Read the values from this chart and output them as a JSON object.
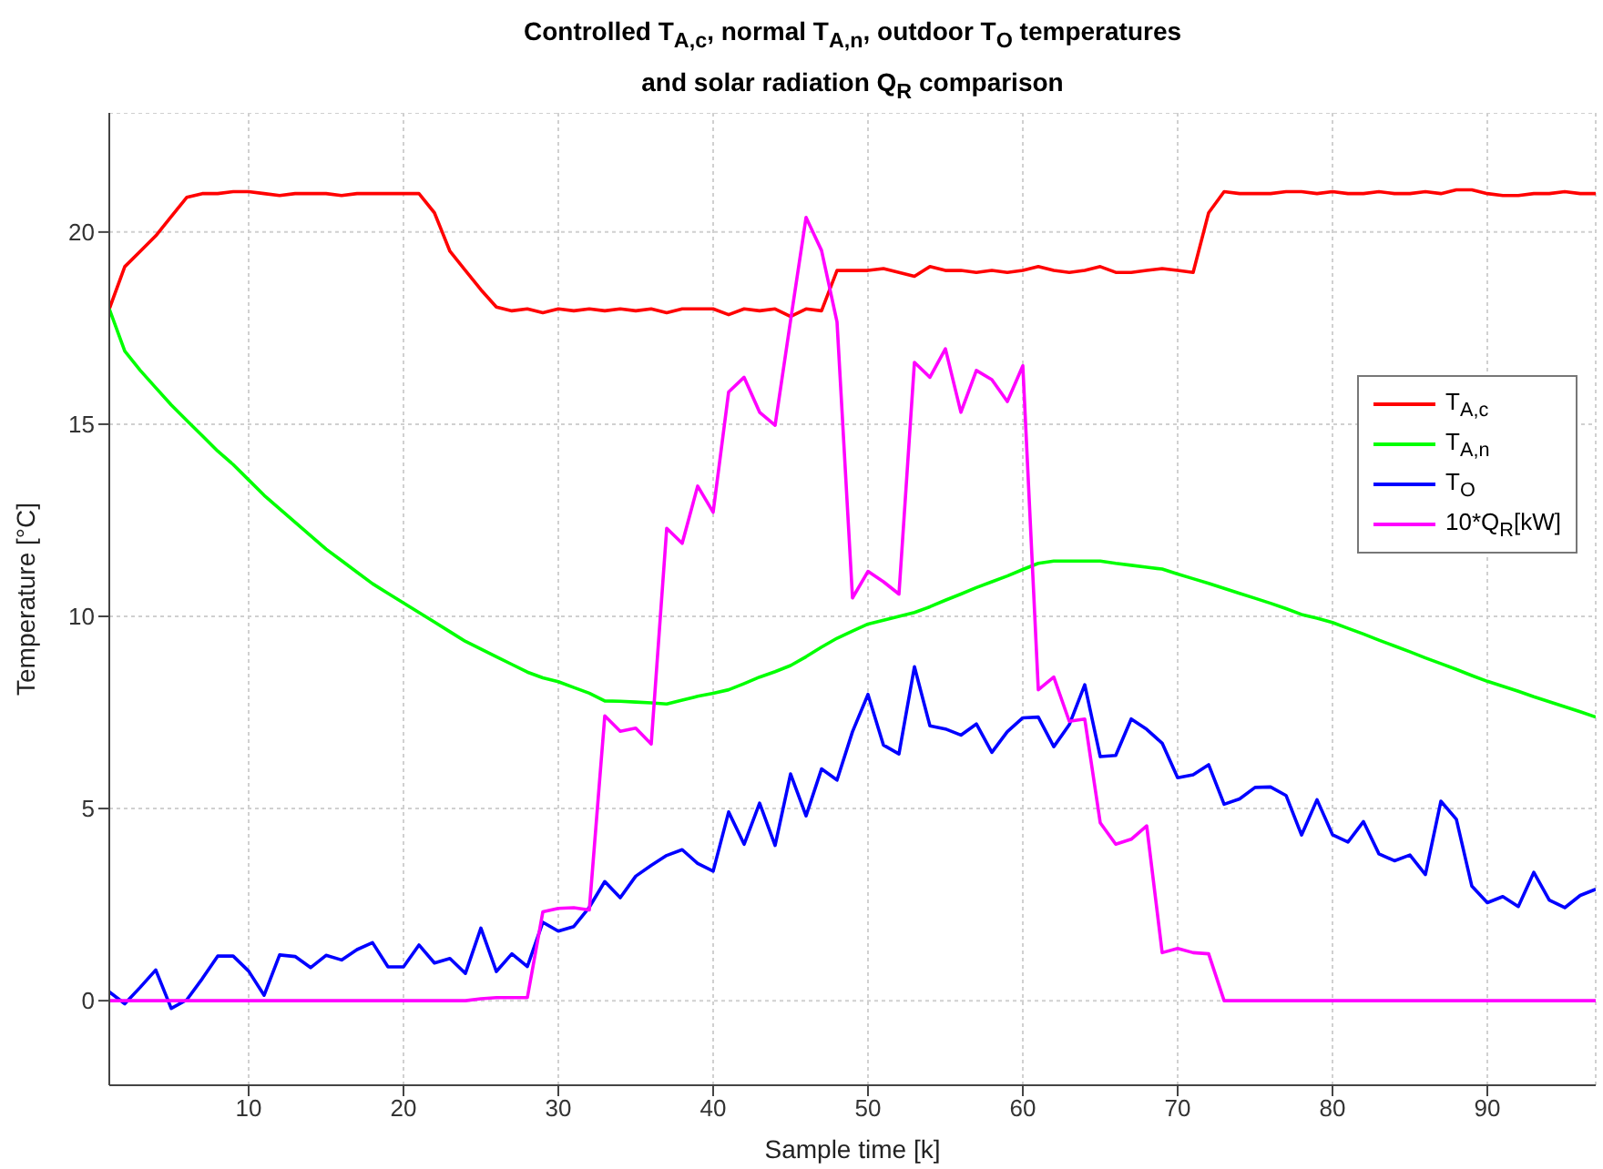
{
  "chart_data": {
    "type": "line",
    "title": "Controlled T$_{A,c}$, normal T$_{A,n}$, outdoor T$_{O}$ temperatures\nand solar radiation Q$_{R}$ comparison",
    "xlabel": "Sample time [k]",
    "ylabel": "Temperature [°C]",
    "x": [
      1,
      2,
      3,
      4,
      5,
      6,
      7,
      8,
      9,
      10,
      11,
      12,
      13,
      14,
      15,
      16,
      17,
      18,
      19,
      20,
      21,
      22,
      23,
      24,
      25,
      26,
      27,
      28,
      29,
      30,
      31,
      32,
      33,
      34,
      35,
      36,
      37,
      38,
      39,
      40,
      41,
      42,
      43,
      44,
      45,
      46,
      47,
      48,
      49,
      50,
      51,
      52,
      53,
      54,
      55,
      56,
      57,
      58,
      59,
      60,
      61,
      62,
      63,
      64,
      65,
      66,
      67,
      68,
      69,
      70,
      71,
      72,
      73,
      74,
      75,
      76,
      77,
      78,
      79,
      80,
      81,
      82,
      83,
      84,
      85,
      86,
      87,
      88,
      89,
      90,
      91,
      92,
      93,
      94,
      95,
      96,
      97
    ],
    "xlim": [
      1,
      97
    ],
    "xticks": [
      10,
      20,
      30,
      40,
      50,
      60,
      70,
      80,
      90
    ],
    "ylim": [
      -2.2,
      23.1
    ],
    "yticks": [
      0,
      5,
      10,
      15,
      20
    ],
    "grid": true,
    "legend": "right",
    "series": [
      {
        "name": "T$_{A,c}$",
        "color": "#ff0000",
        "values": [
          18,
          19.1,
          19.5,
          19.9,
          20.4,
          20.9,
          21.0,
          21.0,
          21.05,
          21.05,
          21.0,
          20.95,
          21.0,
          21.0,
          21.0,
          20.95,
          21.0,
          21.0,
          21.0,
          21.0,
          21.0,
          20.5,
          19.5,
          19.0,
          18.5,
          18.05,
          17.95,
          18.0,
          17.9,
          18.0,
          17.95,
          18.0,
          17.95,
          18.0,
          17.95,
          18.0,
          17.9,
          18.0,
          18.0,
          18.0,
          17.85,
          18.0,
          17.95,
          18.0,
          17.8,
          18.0,
          17.95,
          19.0,
          19.0,
          19.0,
          19.05,
          18.95,
          18.85,
          19.1,
          19.0,
          19.0,
          18.95,
          19.0,
          18.95,
          19.0,
          19.1,
          19.0,
          18.95,
          19.0,
          19.1,
          18.95,
          18.95,
          19.0,
          19.05,
          19.0,
          18.95,
          20.5,
          21.05,
          21.0,
          21.0,
          21.0,
          21.05,
          21.05,
          21.0,
          21.05,
          21.0,
          21.0,
          21.05,
          21.0,
          21.0,
          21.05,
          21.0,
          21.1,
          21.1,
          21.0,
          20.95,
          20.95,
          21.0,
          21.0,
          21.05,
          21.0,
          21.0
        ]
      },
      {
        "name": "T$_{A,n}$",
        "color": "#00ff00",
        "values": [
          18,
          16.9,
          16.4,
          15.95,
          15.5,
          15.1,
          14.7,
          14.3,
          13.95,
          13.55,
          13.15,
          12.8,
          12.45,
          12.1,
          11.75,
          11.45,
          11.15,
          10.85,
          10.6,
          10.35,
          10.1,
          9.85,
          9.6,
          9.35,
          9.15,
          8.95,
          8.75,
          8.55,
          8.4,
          8.3,
          8.15,
          8.0,
          7.8,
          7.79,
          7.77,
          7.75,
          7.72,
          7.82,
          7.92,
          8.0,
          8.09,
          8.25,
          8.42,
          8.56,
          8.72,
          8.95,
          9.2,
          9.43,
          9.62,
          9.8,
          9.9,
          10.0,
          10.1,
          10.25,
          10.42,
          10.58,
          10.75,
          10.9,
          11.05,
          11.22,
          11.38,
          11.44,
          11.44,
          11.44,
          11.44,
          11.38,
          11.33,
          11.28,
          11.23,
          11.1,
          10.98,
          10.86,
          10.73,
          10.6,
          10.47,
          10.34,
          10.2,
          10.05,
          9.95,
          9.84,
          9.69,
          9.54,
          9.38,
          9.23,
          9.08,
          8.92,
          8.77,
          8.62,
          8.46,
          8.31,
          8.18,
          8.05,
          7.91,
          7.78,
          7.65,
          7.52,
          7.38
        ]
      },
      {
        "name": "T$_{O}$",
        "color": "#0000ff",
        "values": [
          0.23,
          -0.08,
          0.35,
          0.8,
          -0.2,
          0.02,
          0.57,
          1.16,
          1.16,
          0.77,
          0.14,
          1.19,
          1.15,
          0.86,
          1.18,
          1.06,
          1.33,
          1.51,
          0.88,
          0.88,
          1.45,
          0.98,
          1.1,
          0.71,
          1.89,
          0.76,
          1.22,
          0.89,
          2.04,
          1.81,
          1.93,
          2.43,
          3.1,
          2.68,
          3.24,
          3.52,
          3.78,
          3.93,
          3.57,
          3.37,
          4.91,
          4.07,
          5.14,
          4.04,
          5.9,
          4.81,
          6.03,
          5.74,
          7.0,
          7.97,
          6.65,
          6.42,
          8.69,
          7.15,
          7.07,
          6.91,
          7.2,
          6.46,
          7.0,
          7.36,
          7.38,
          6.61,
          7.18,
          8.22,
          6.35,
          6.38,
          7.33,
          7.06,
          6.7,
          5.8,
          5.88,
          6.14,
          5.11,
          5.25,
          5.55,
          5.56,
          5.34,
          4.31,
          5.23,
          4.32,
          4.13,
          4.66,
          3.82,
          3.64,
          3.79,
          3.28,
          5.19,
          4.72,
          2.98,
          2.55,
          2.71,
          2.45,
          3.34,
          2.62,
          2.42,
          2.74,
          2.9
        ]
      },
      {
        "name": "10*Q$_{R}$[kW]",
        "color": "#ff00ff",
        "values": [
          0,
          0,
          0,
          0,
          0,
          0,
          0,
          0,
          0,
          0,
          0,
          0,
          0,
          0,
          0,
          0,
          0,
          0,
          0,
          0,
          0,
          0,
          0,
          0,
          0.05,
          0.08,
          0.08,
          0.08,
          2.31,
          2.4,
          2.42,
          2.36,
          7.41,
          7.01,
          7.09,
          6.68,
          12.29,
          11.9,
          13.39,
          12.71,
          15.84,
          16.22,
          15.31,
          14.97,
          17.7,
          20.38,
          19.52,
          17.66,
          10.48,
          11.17,
          10.9,
          10.58,
          16.61,
          16.22,
          16.96,
          15.31,
          16.4,
          16.16,
          15.59,
          16.52,
          8.09,
          8.42,
          7.27,
          7.33,
          4.63,
          4.07,
          4.2,
          4.55,
          1.25,
          1.36,
          1.25,
          1.22,
          0,
          0,
          0,
          0,
          0,
          0,
          0,
          0,
          0,
          0,
          0,
          0,
          0,
          0,
          0,
          0,
          0,
          0,
          0,
          0,
          0,
          0,
          0,
          0,
          0
        ]
      }
    ]
  }
}
